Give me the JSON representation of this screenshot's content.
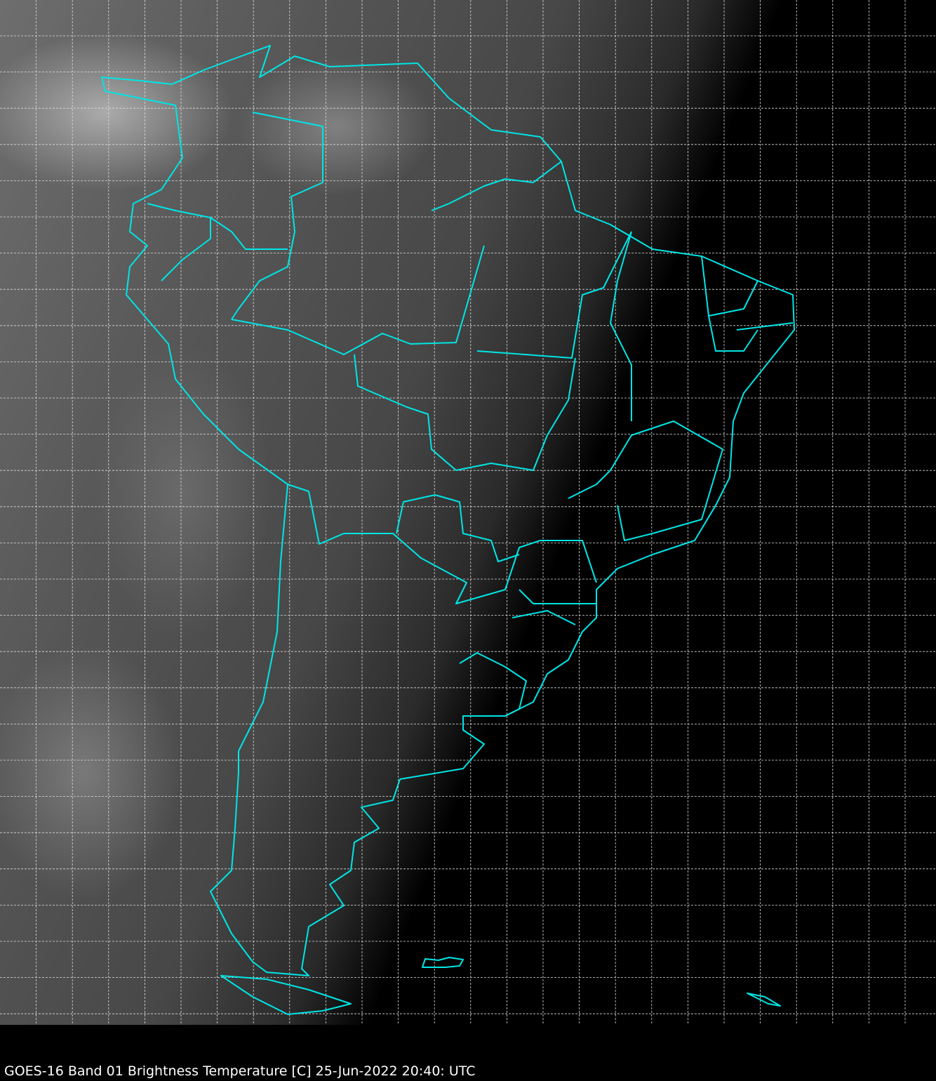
{
  "caption": "GOES-16 Band 01  Brightness Temperature [C] 25-Jun-2022 20:40: UTC",
  "map": {
    "satellite": "GOES-16",
    "band": "Band 01",
    "quantity": "Brightness Temperature [C]",
    "region": "South America",
    "grid": true,
    "colors": {
      "borders": "#00e5e5",
      "grid": "#ffffff",
      "background": "#000000"
    }
  }
}
